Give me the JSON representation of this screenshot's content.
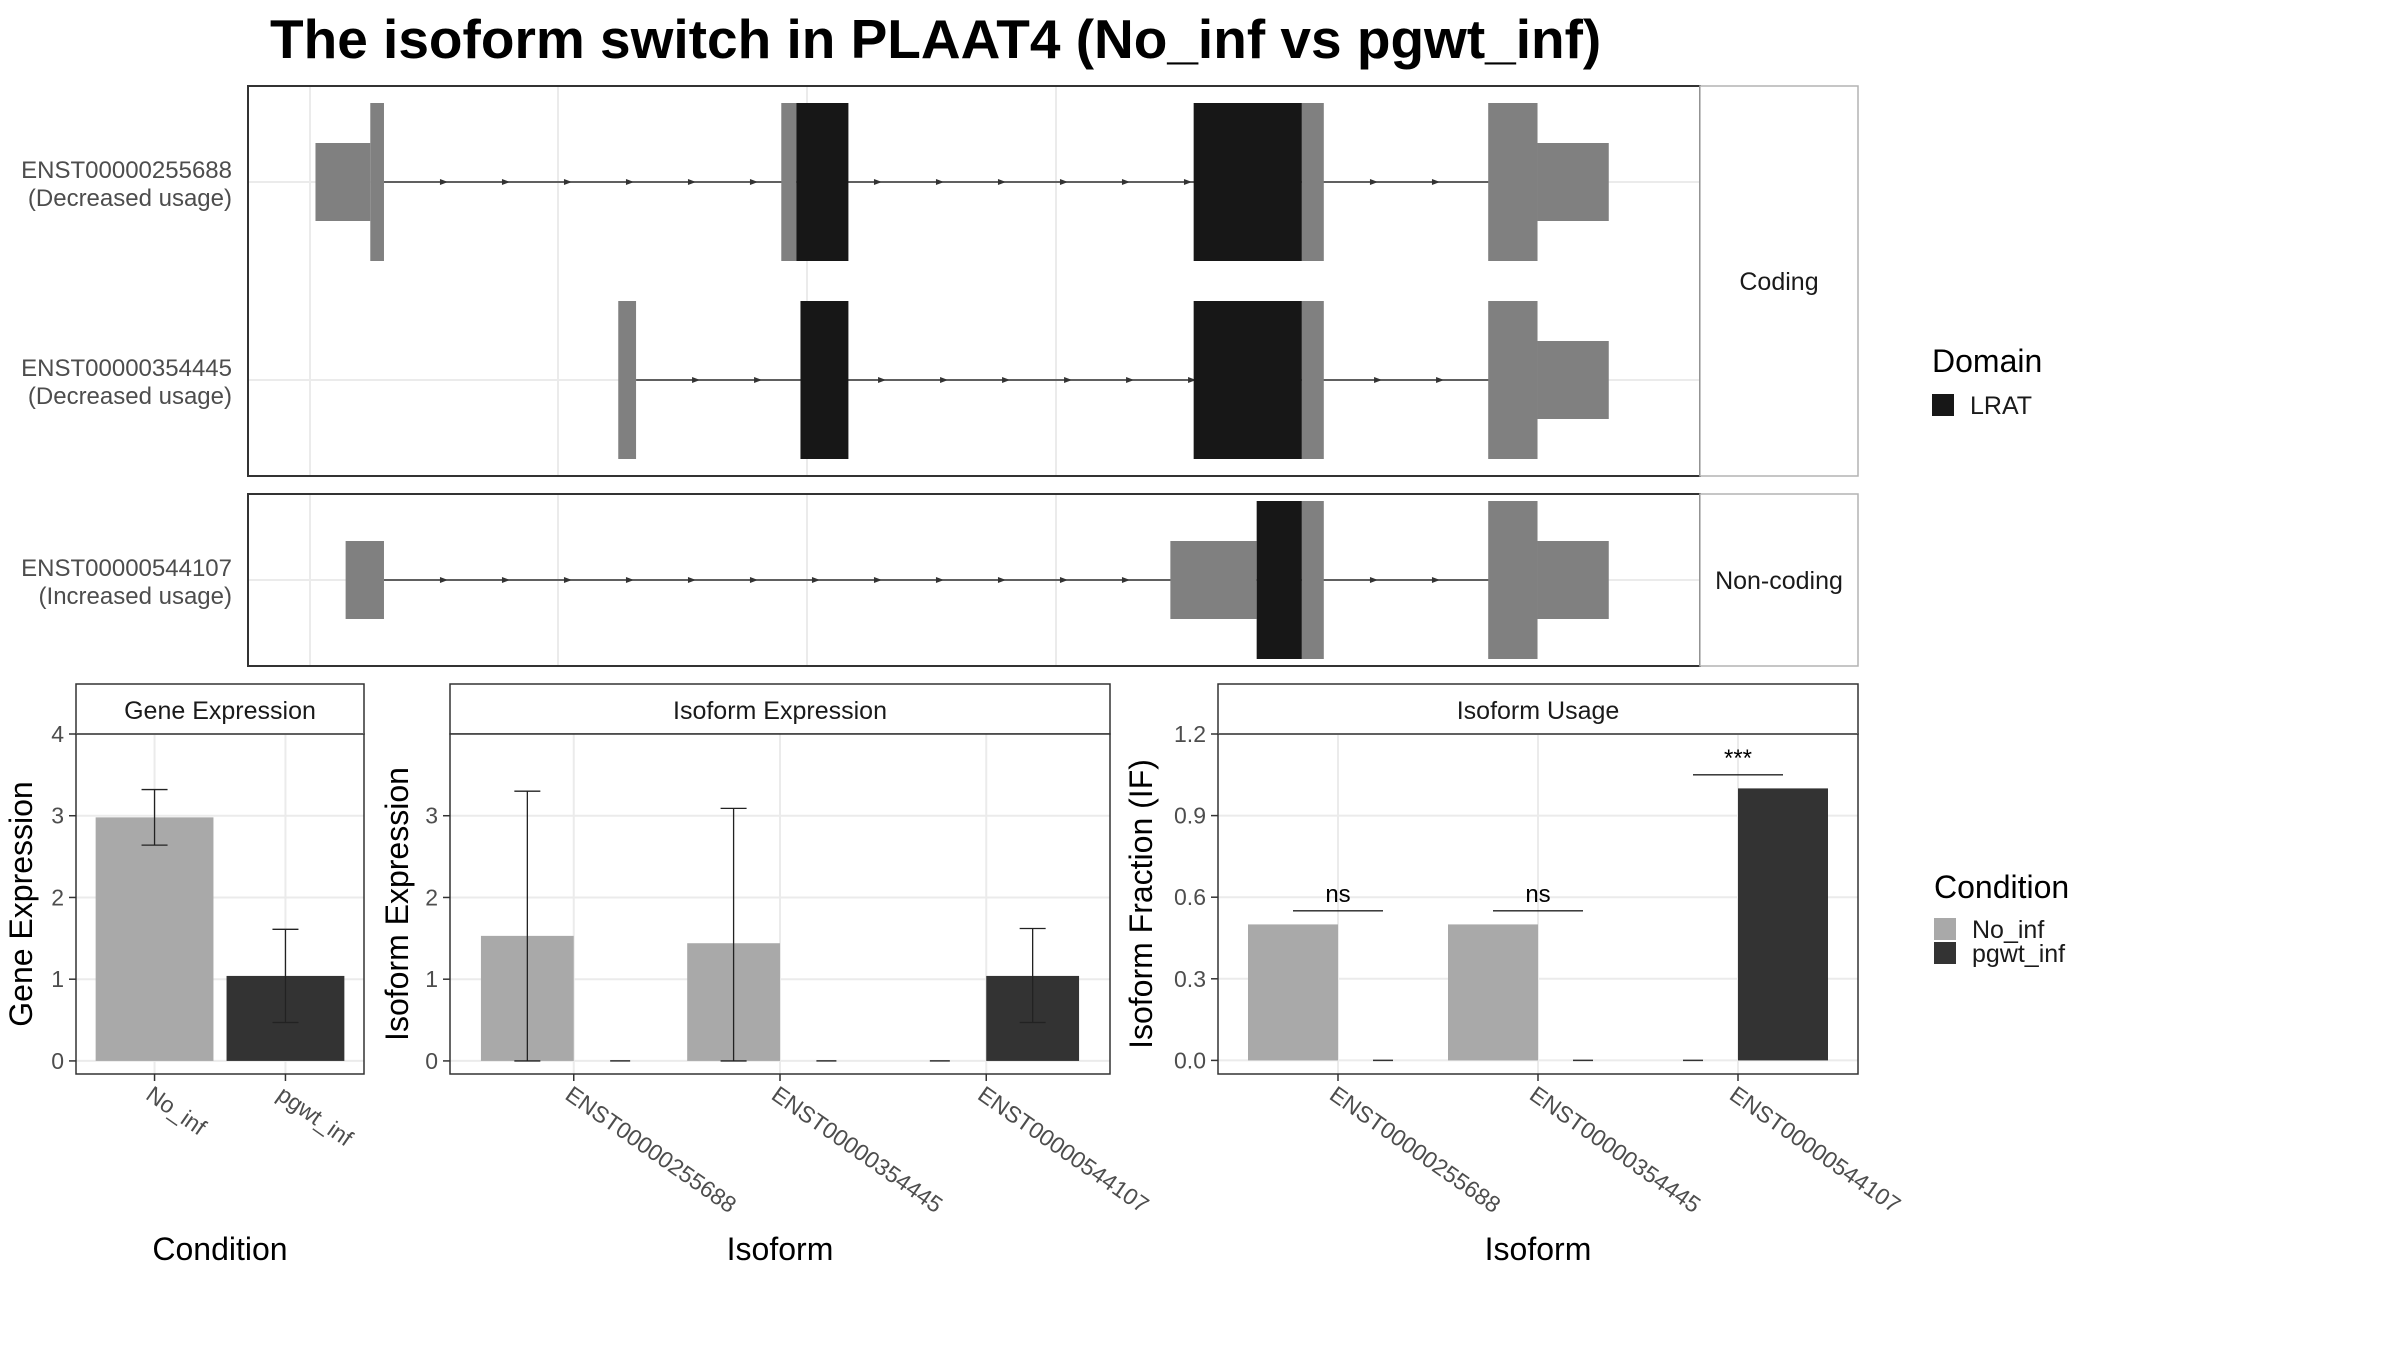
{
  "title": "The isoform switch in PLAAT4 (No_inf vs pgwt_inf)",
  "colors": {
    "utr": "#808080",
    "lrat": "#171717",
    "no_inf": "#a9a9a9",
    "pgwt_inf": "#333333",
    "panel_border": "#333333",
    "strip_border": "#b3b3b3",
    "grid": "#ebebeb"
  },
  "structure": {
    "genome_range": [
      0,
      1000
    ],
    "domain_legend": {
      "title": "Domain",
      "items": [
        {
          "name": "LRAT",
          "color": "#171717"
        }
      ]
    },
    "facets": [
      {
        "label": "Coding",
        "transcripts": [
          {
            "id": "ENST00000255688",
            "note": "(Decreased usage)",
            "intron": [
              54,
              896
            ],
            "exons": [
              {
                "start": 4,
                "end": 44,
                "type": "utr",
                "size": "small"
              },
              {
                "start": 44,
                "end": 54,
                "type": "utr",
                "size": "large"
              },
              {
                "start": 344,
                "end": 355,
                "type": "utr",
                "size": "large"
              },
              {
                "start": 355,
                "end": 393,
                "type": "lrat",
                "size": "large"
              },
              {
                "start": 645,
                "end": 724,
                "type": "lrat",
                "size": "large"
              },
              {
                "start": 724,
                "end": 740,
                "type": "utr",
                "size": "large"
              },
              {
                "start": 860,
                "end": 896,
                "type": "utr",
                "size": "large"
              },
              {
                "start": 896,
                "end": 948,
                "type": "utr",
                "size": "small"
              }
            ]
          },
          {
            "id": "ENST00000354445",
            "note": "(Decreased usage)",
            "intron": [
              238,
              896
            ],
            "exons": [
              {
                "start": 225,
                "end": 238,
                "type": "utr",
                "size": "large"
              },
              {
                "start": 358,
                "end": 393,
                "type": "lrat",
                "size": "large"
              },
              {
                "start": 645,
                "end": 724,
                "type": "lrat",
                "size": "large"
              },
              {
                "start": 724,
                "end": 740,
                "type": "utr",
                "size": "large"
              },
              {
                "start": 860,
                "end": 896,
                "type": "utr",
                "size": "large"
              },
              {
                "start": 896,
                "end": 948,
                "type": "utr",
                "size": "small"
              }
            ]
          }
        ]
      },
      {
        "label": "Non-coding",
        "transcripts": [
          {
            "id": "ENST00000544107",
            "note": "(Increased usage)",
            "intron": [
              54,
              896
            ],
            "exons": [
              {
                "start": 26,
                "end": 54,
                "type": "utr",
                "size": "small"
              },
              {
                "start": 628,
                "end": 691,
                "type": "utr",
                "size": "small"
              },
              {
                "start": 691,
                "end": 724,
                "type": "lrat",
                "size": "large"
              },
              {
                "start": 724,
                "end": 740,
                "type": "utr",
                "size": "large"
              },
              {
                "start": 860,
                "end": 896,
                "type": "utr",
                "size": "large"
              },
              {
                "start": 896,
                "end": 948,
                "type": "utr",
                "size": "small"
              }
            ]
          }
        ]
      }
    ]
  },
  "chart_data": [
    {
      "type": "bar",
      "title": "Gene Expression",
      "xlabel": "Condition",
      "ylabel": "Gene Expression",
      "categories": [
        "No_inf",
        "pgwt_inf"
      ],
      "values": [
        2.98,
        1.04
      ],
      "errors": [
        [
          2.64,
          3.32
        ],
        [
          0.47,
          1.61
        ]
      ],
      "ylim": [
        -0.16,
        4.0
      ],
      "yticks": [
        "0",
        "1",
        "2",
        "3",
        "4"
      ],
      "grid": true
    },
    {
      "type": "bar",
      "title": "Isoform Expression",
      "xlabel": "Isoform",
      "ylabel": "Isoform Expression",
      "categories": [
        "ENST00000255688",
        "ENST00000354445",
        "ENST00000544107"
      ],
      "series": [
        {
          "name": "No_inf",
          "values": [
            1.53,
            1.44,
            0.0
          ],
          "errors": [
            [
              0.0,
              3.3
            ],
            [
              0.0,
              3.09
            ],
            [
              0.0,
              0.0
            ]
          ]
        },
        {
          "name": "pgwt_inf",
          "values": [
            0.0,
            0.0,
            1.04
          ],
          "errors": [
            [
              0.0,
              0.0
            ],
            [
              0.0,
              0.0
            ],
            [
              0.47,
              1.62
            ]
          ]
        }
      ],
      "ylim": [
        -0.16,
        4.0
      ],
      "yticks": [
        "0",
        "1",
        "2",
        "3"
      ],
      "grid": true
    },
    {
      "type": "bar",
      "title": "Isoform Usage",
      "xlabel": "Isoform",
      "ylabel": "Isoform Fraction (IF)",
      "categories": [
        "ENST00000255688",
        "ENST00000354445",
        "ENST00000544107"
      ],
      "series": [
        {
          "name": "No_inf",
          "values": [
            0.5,
            0.5,
            0.0
          ]
        },
        {
          "name": "pgwt_inf",
          "values": [
            0.0,
            0.0,
            1.0
          ]
        }
      ],
      "significance": [
        {
          "category": "ENST00000255688",
          "label": "ns",
          "y": 0.55
        },
        {
          "category": "ENST00000354445",
          "label": "ns",
          "y": 0.55
        },
        {
          "category": "ENST00000544107",
          "label": "***",
          "y": 1.05
        }
      ],
      "ylim": [
        -0.05,
        1.2
      ],
      "yticks": [
        "0.0",
        "0.3",
        "0.6",
        "0.9",
        "1.2"
      ],
      "grid": true
    }
  ],
  "condition_legend": {
    "title": "Condition",
    "items": [
      {
        "name": "No_inf",
        "color": "#a9a9a9"
      },
      {
        "name": "pgwt_inf",
        "color": "#333333"
      }
    ]
  }
}
